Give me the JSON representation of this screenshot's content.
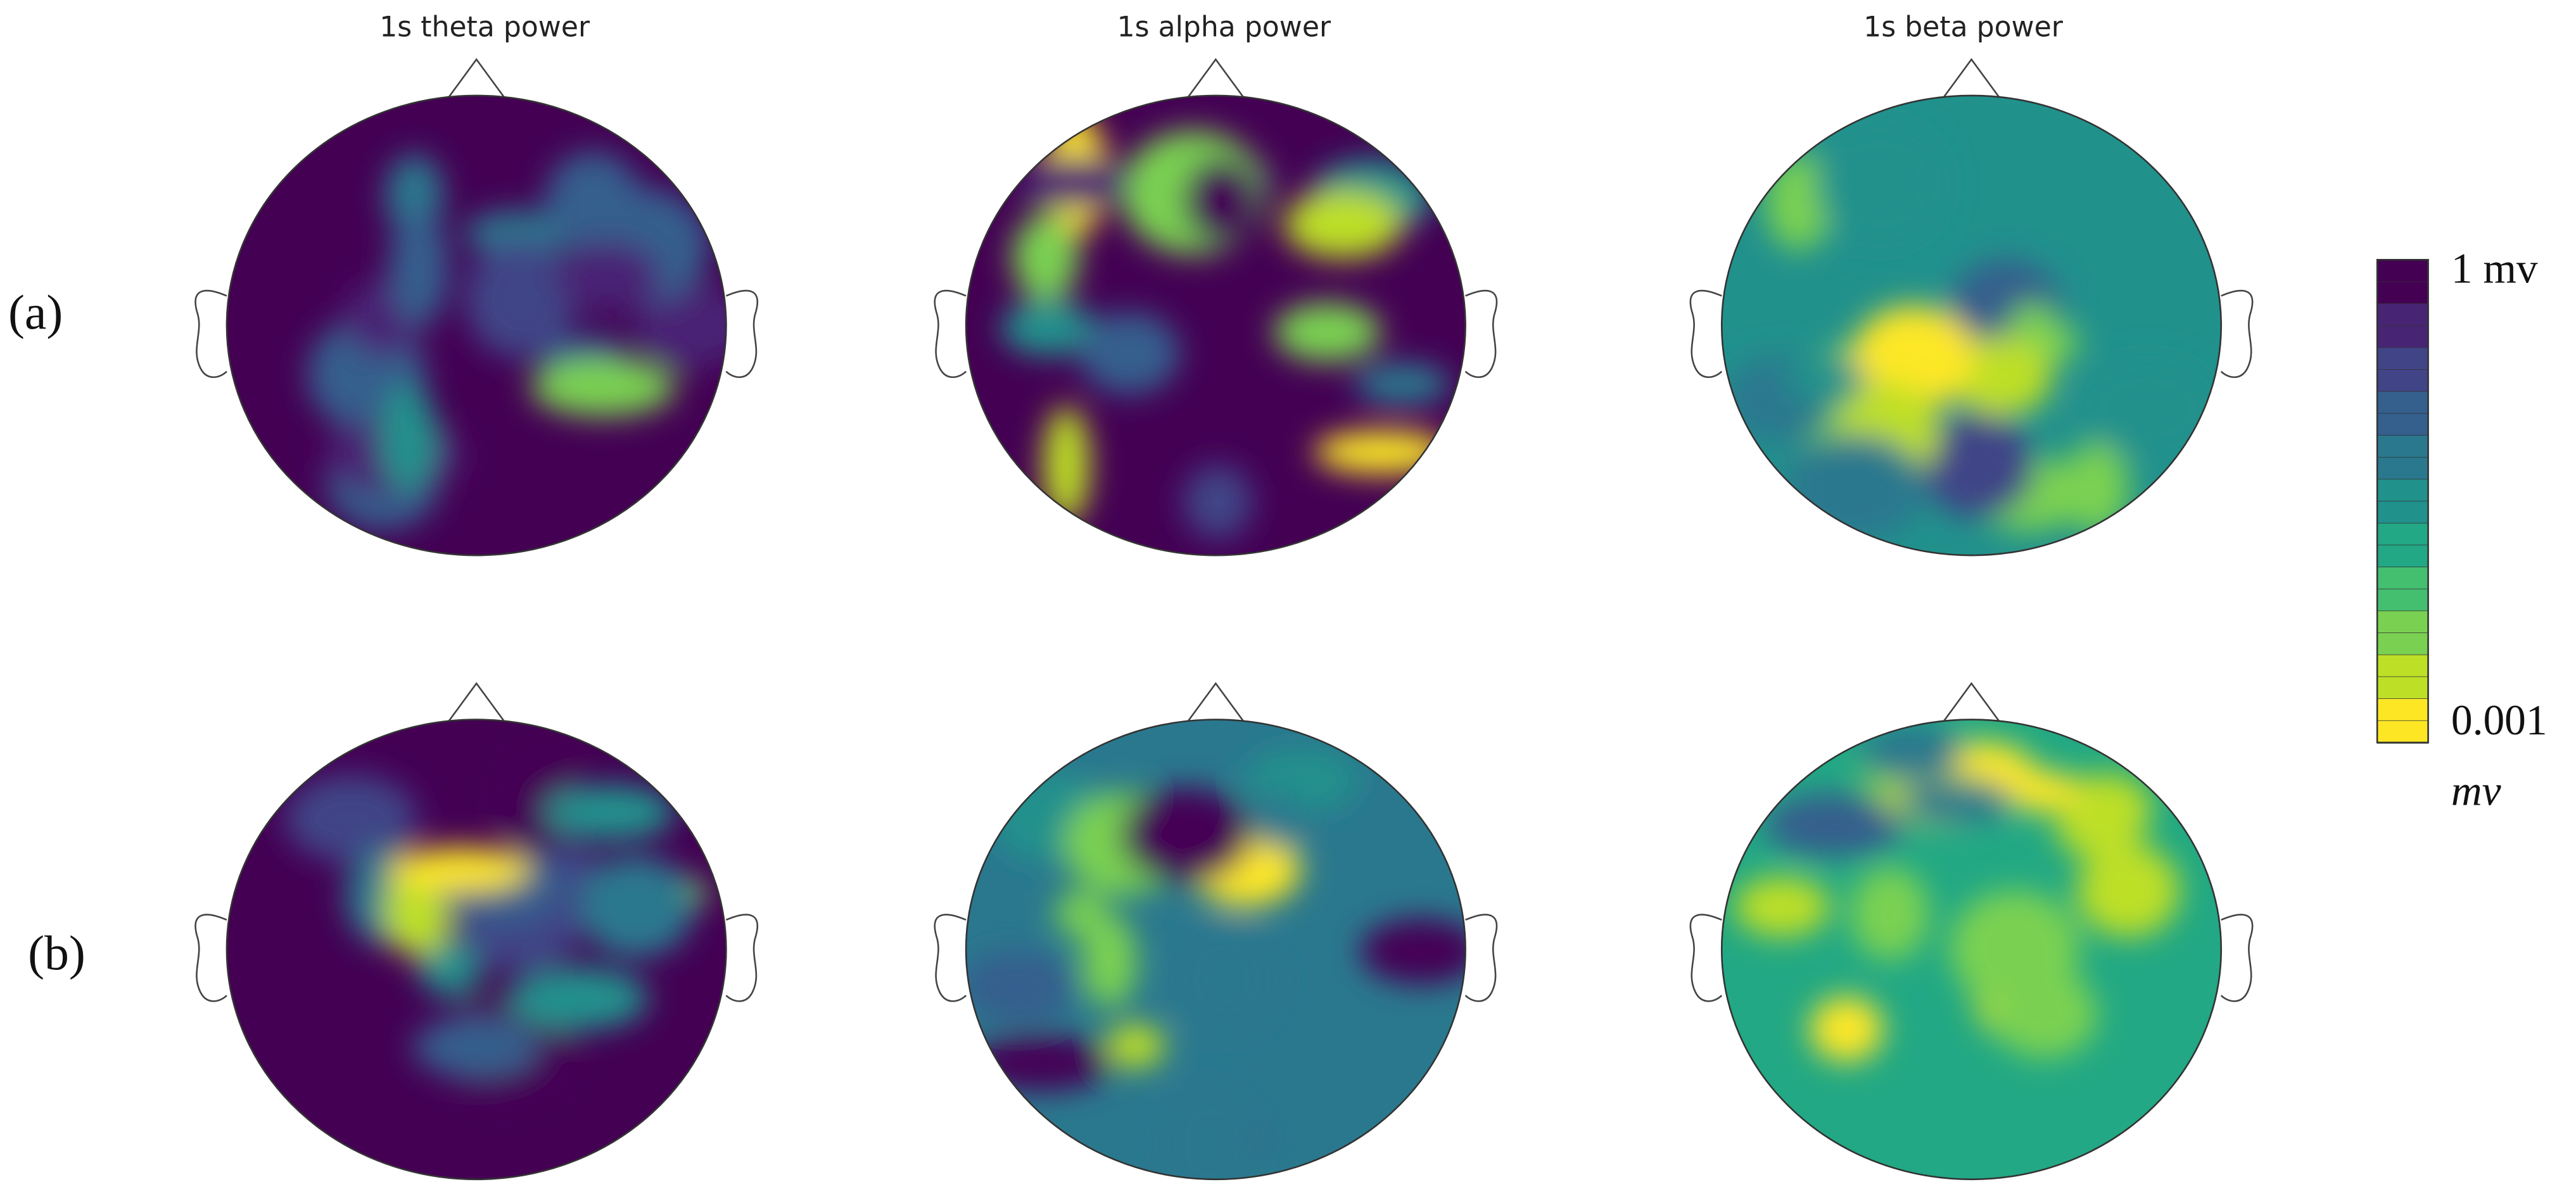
{
  "columns": [
    {
      "title": "1s theta power"
    },
    {
      "title": "1s alpha power"
    },
    {
      "title": "1s beta power"
    }
  ],
  "rows": [
    {
      "label": "(a)"
    },
    {
      "label": "(b)"
    }
  ],
  "colorbar": {
    "top_label": "1 mv",
    "bottom_label": "0.001",
    "bottom_unit": "mv"
  }
}
